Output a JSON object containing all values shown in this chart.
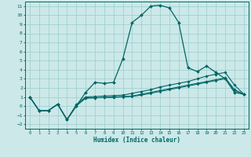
{
  "xlabel": "Humidex (Indice chaleur)",
  "ylabel": "",
  "xlim": [
    -0.5,
    23.5
  ],
  "ylim": [
    -2.5,
    11.5
  ],
  "xticks": [
    0,
    1,
    2,
    3,
    4,
    5,
    6,
    7,
    8,
    9,
    10,
    11,
    12,
    13,
    14,
    15,
    16,
    17,
    18,
    19,
    20,
    21,
    22,
    23
  ],
  "yticks": [
    -2,
    -1,
    0,
    1,
    2,
    3,
    4,
    5,
    6,
    7,
    8,
    9,
    10,
    11
  ],
  "bg_color": "#cce8e8",
  "line_color": "#006666",
  "grid_color": "#99cccc",
  "line1_x": [
    0,
    1,
    2,
    3,
    4,
    5,
    6,
    7,
    8,
    9,
    10,
    11,
    12,
    13,
    14,
    15,
    16,
    17,
    18,
    19,
    20,
    21,
    22,
    23
  ],
  "line1_y": [
    1.0,
    -0.5,
    -0.5,
    0.2,
    -1.5,
    0.0,
    1.5,
    2.6,
    2.5,
    2.6,
    5.2,
    9.2,
    10.0,
    11.0,
    11.1,
    10.8,
    9.2,
    4.2,
    3.8,
    4.4,
    3.7,
    3.0,
    1.5,
    1.3
  ],
  "line2_x": [
    0,
    1,
    2,
    3,
    4,
    5,
    6,
    7,
    8,
    9,
    10,
    11,
    12,
    13,
    14,
    15,
    16,
    17,
    18,
    19,
    20,
    21,
    22,
    23
  ],
  "line2_y": [
    1.0,
    -0.5,
    -0.5,
    0.2,
    -1.5,
    0.0,
    0.9,
    0.9,
    0.95,
    1.0,
    1.05,
    1.1,
    1.3,
    1.5,
    1.7,
    1.9,
    2.1,
    2.3,
    2.5,
    2.7,
    2.9,
    3.1,
    1.8,
    1.3
  ],
  "line3_x": [
    0,
    1,
    2,
    3,
    4,
    5,
    6,
    7,
    8,
    9,
    10,
    11,
    12,
    13,
    14,
    15,
    16,
    17,
    18,
    19,
    20,
    21,
    22,
    23
  ],
  "line3_y": [
    1.0,
    -0.5,
    -0.5,
    0.2,
    -1.5,
    0.15,
    1.0,
    1.05,
    1.1,
    1.15,
    1.2,
    1.4,
    1.6,
    1.8,
    2.1,
    2.3,
    2.5,
    2.7,
    3.0,
    3.3,
    3.5,
    3.7,
    2.3,
    1.3
  ],
  "line4_x": [
    0,
    1,
    2,
    3,
    4,
    5,
    6,
    7,
    8,
    9,
    10,
    11,
    12,
    13,
    14,
    15,
    16,
    17,
    18,
    19,
    20,
    21,
    22,
    23
  ],
  "line4_y": [
    1.0,
    -0.5,
    -0.5,
    0.2,
    -1.5,
    0.05,
    0.85,
    0.9,
    0.92,
    0.95,
    1.0,
    1.05,
    1.2,
    1.4,
    1.6,
    1.8,
    2.0,
    2.2,
    2.4,
    2.6,
    2.8,
    3.0,
    1.7,
    1.3
  ]
}
